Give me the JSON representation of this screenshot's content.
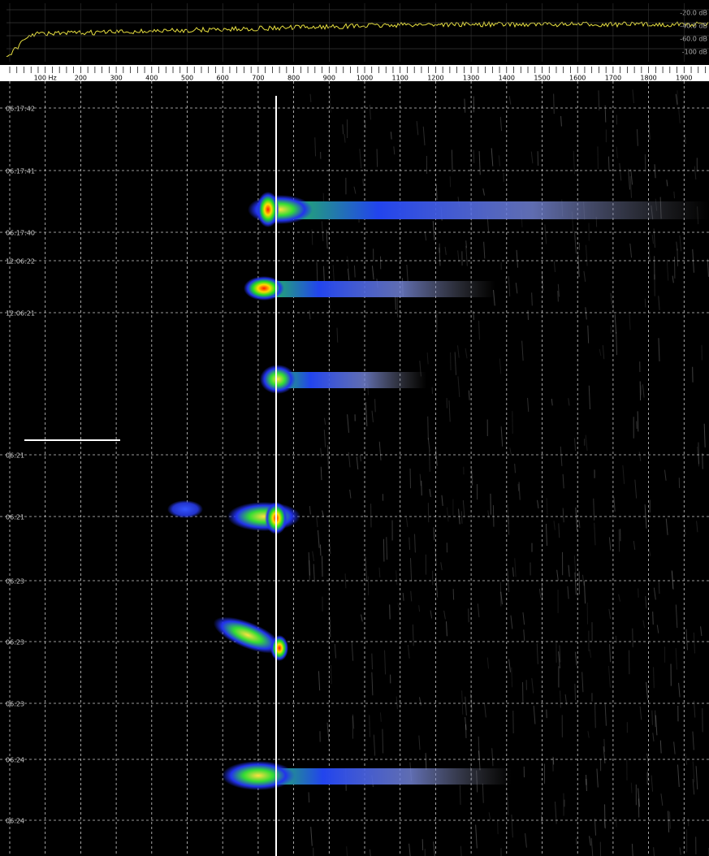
{
  "spectrum_panel": {
    "db_labels": [
      "-20.0 dB",
      "-40.0 dB",
      "-60.0 dB",
      "-100 dB"
    ]
  },
  "frequency_axis": {
    "labels": [
      "100 Hz",
      "200",
      "300",
      "400",
      "500",
      "600",
      "700",
      "800",
      "900",
      "1000",
      "1100",
      "1200",
      "1300",
      "1400",
      "1500",
      "1600",
      "1700",
      "1800",
      "1900"
    ]
  },
  "waterfall": {
    "time_labels": [
      "06:17:42",
      "06:17:41",
      "06:17:40",
      "12:06:22",
      "12:06:21",
      "06:21",
      "06:21",
      "06:23",
      "06:23",
      "06:23",
      "06:24",
      "06:24"
    ]
  }
}
